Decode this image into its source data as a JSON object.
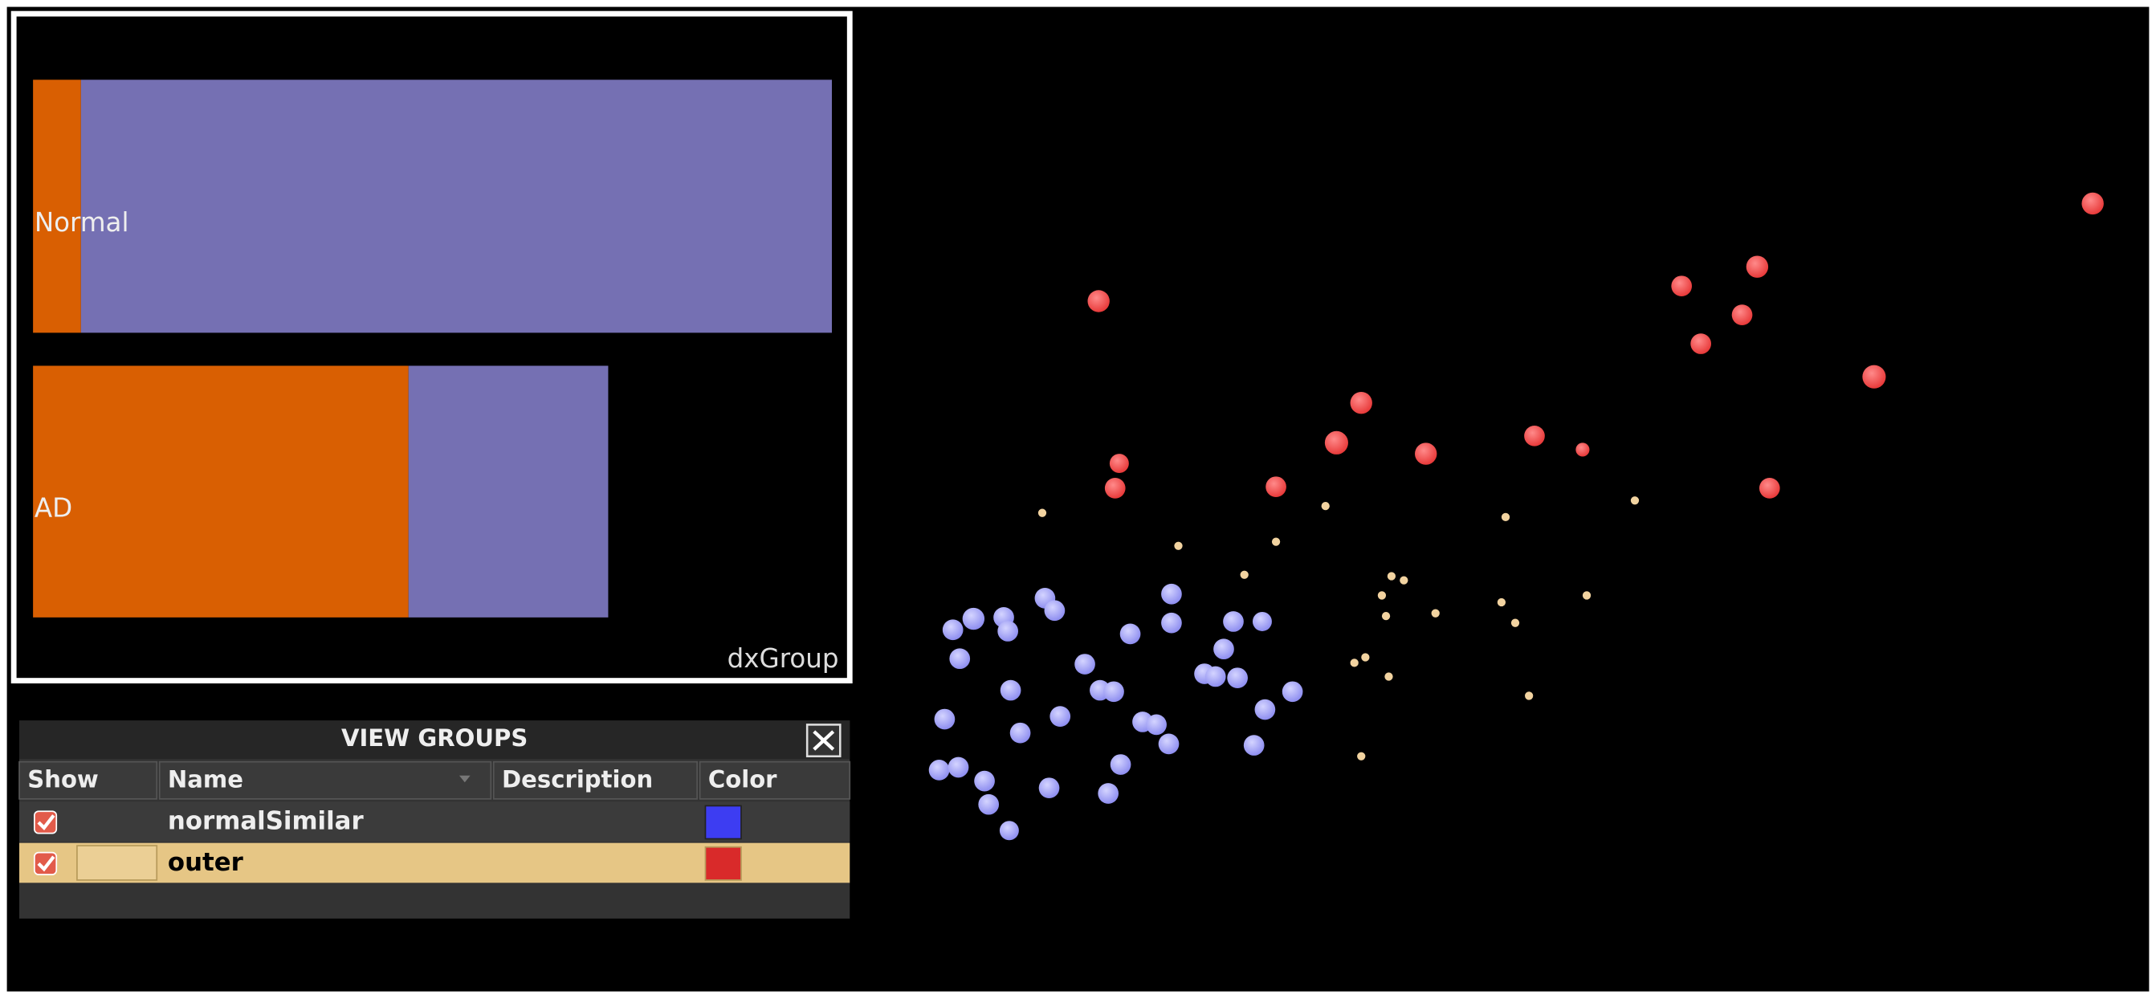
{
  "chart_data": {
    "type": "bar",
    "orientation": "horizontal",
    "stacked": true,
    "categories": [
      "Normal",
      "AD"
    ],
    "series": [
      {
        "color": "#d95f02",
        "values": [
          6,
          47
        ]
      },
      {
        "color": "#7570b3",
        "values": [
          94,
          25
        ]
      }
    ],
    "xlim": [
      0,
      100
    ],
    "group_label": "dxGroup"
  },
  "view_groups": {
    "title": "VIEW GROUPS",
    "columns": [
      "Show",
      "Name",
      "Description",
      "Color"
    ],
    "rows": [
      {
        "shown": true,
        "name": "normalSimilar",
        "color": "#3d3df2",
        "selected": false
      },
      {
        "shown": true,
        "name": "outer",
        "color": "#d92a2a",
        "selected": true
      }
    ]
  }
}
